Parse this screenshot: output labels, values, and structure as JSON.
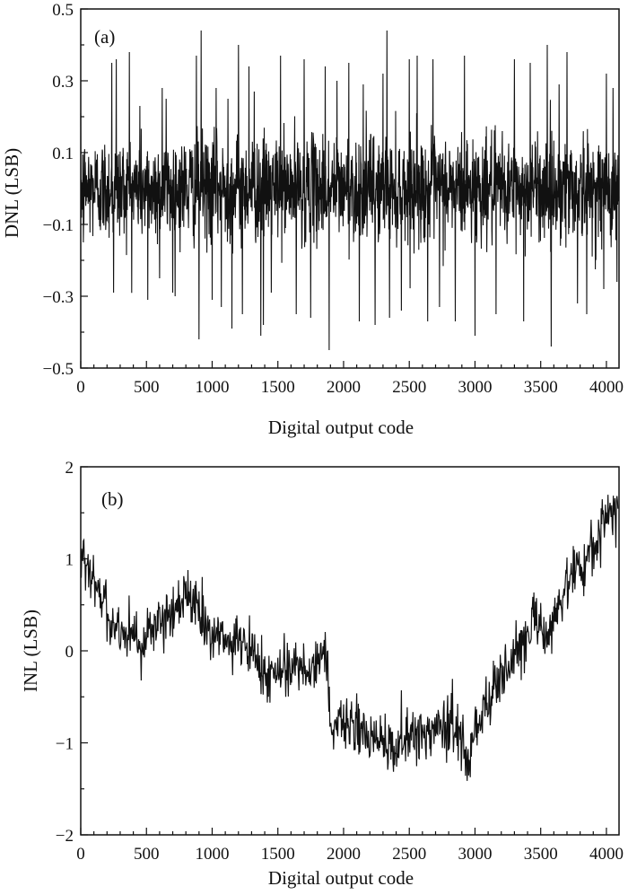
{
  "chart_data": [
    {
      "type": "line",
      "panel_label": "(a)",
      "xlabel": "Digital output code",
      "ylabel": "DNL (LSB)",
      "xlim": [
        0,
        4096
      ],
      "ylim": [
        -0.5,
        0.5
      ],
      "xticks": [
        0,
        500,
        1000,
        1500,
        2000,
        2500,
        3000,
        3500,
        4000
      ],
      "yticks": [
        -0.5,
        -0.3,
        -0.1,
        0.1,
        0.3,
        0.5
      ],
      "ytick_labels": [
        "−0.5",
        "−0.3",
        "−0.1",
        "0.1",
        "0.3",
        "0.5"
      ],
      "grid": false,
      "line_color": "#111111",
      "series": [
        {
          "noise_envelope": 0.16,
          "x": [
            0,
            20,
            235,
            250,
            270,
            370,
            450,
            510,
            600,
            620,
            650,
            700,
            880,
            900,
            915,
            1000,
            1030,
            1070,
            1120,
            1150,
            1200,
            1230,
            1280,
            1320,
            1370,
            1390,
            1450,
            1520,
            1640,
            1700,
            1750,
            1860,
            1890,
            1950,
            2040,
            2120,
            2150,
            2240,
            2300,
            2330,
            2350,
            2440,
            2500,
            2560,
            2640,
            2680,
            2730,
            2850,
            2920,
            3000,
            3160,
            3300,
            3370,
            3420,
            3550,
            3580,
            3640,
            3700,
            3780,
            3850,
            3980,
            4000,
            4050,
            4080
          ],
          "y": [
            0.21,
            -0.15,
            0.35,
            -0.29,
            0.36,
            0.38,
            0.23,
            -0.31,
            -0.25,
            0.28,
            0.25,
            -0.29,
            0.37,
            -0.42,
            0.44,
            -0.31,
            0.28,
            -0.33,
            0.25,
            -0.39,
            0.4,
            -0.35,
            0.34,
            0.27,
            -0.41,
            -0.38,
            -0.29,
            0.37,
            -0.35,
            0.36,
            -0.36,
            0.34,
            -0.45,
            0.3,
            0.35,
            -0.37,
            0.29,
            -0.38,
            0.32,
            0.44,
            -0.36,
            -0.34,
            0.36,
            0.37,
            -0.37,
            0.36,
            -0.33,
            -0.37,
            0.37,
            -0.41,
            -0.35,
            0.36,
            -0.37,
            0.35,
            0.4,
            -0.44,
            0.29,
            0.38,
            -0.32,
            -0.35,
            -0.28,
            0.32,
            0.28,
            -0.26
          ]
        }
      ]
    },
    {
      "type": "line",
      "panel_label": "(b)",
      "xlabel": "Digital output code",
      "ylabel": "INL (LSB)",
      "xlim": [
        0,
        4096
      ],
      "ylim": [
        -2,
        2
      ],
      "xticks": [
        0,
        500,
        1000,
        1500,
        2000,
        2500,
        3000,
        3500,
        4000
      ],
      "yticks": [
        -2,
        -1,
        0,
        1,
        2
      ],
      "ytick_labels": [
        "−2",
        "−1",
        "0",
        "1",
        "2"
      ],
      "grid": false,
      "line_color": "#111111",
      "series": [
        {
          "noise_envelope": 0.28,
          "x": [
            0,
            30,
            80,
            150,
            250,
            350,
            450,
            550,
            650,
            720,
            780,
            810,
            860,
            900,
            1000,
            1100,
            1200,
            1300,
            1400,
            1500,
            1600,
            1700,
            1800,
            1850,
            1880,
            1900,
            1950,
            2000,
            2100,
            2200,
            2300,
            2400,
            2500,
            2600,
            2700,
            2800,
            2900,
            2950,
            3000,
            3100,
            3200,
            3300,
            3400,
            3500,
            3560,
            3600,
            3700,
            3800,
            3900,
            3950,
            4000,
            4050,
            4090
          ],
          "y": [
            1.15,
            1.05,
            0.75,
            0.6,
            0.3,
            0.2,
            0.1,
            0.25,
            0.35,
            0.4,
            0.6,
            0.75,
            0.55,
            0.35,
            0.15,
            0.1,
            0.05,
            0.0,
            -0.25,
            -0.2,
            -0.15,
            -0.2,
            -0.1,
            -0.05,
            -0.15,
            -0.9,
            -0.85,
            -0.75,
            -0.85,
            -0.95,
            -1.0,
            -1.05,
            -0.95,
            -0.9,
            -0.85,
            -0.8,
            -0.9,
            -1.25,
            -0.8,
            -0.55,
            -0.3,
            0.0,
            0.2,
            0.35,
            0.1,
            0.4,
            0.7,
            0.9,
            1.1,
            1.3,
            1.45,
            1.5,
            1.55
          ]
        }
      ]
    }
  ]
}
